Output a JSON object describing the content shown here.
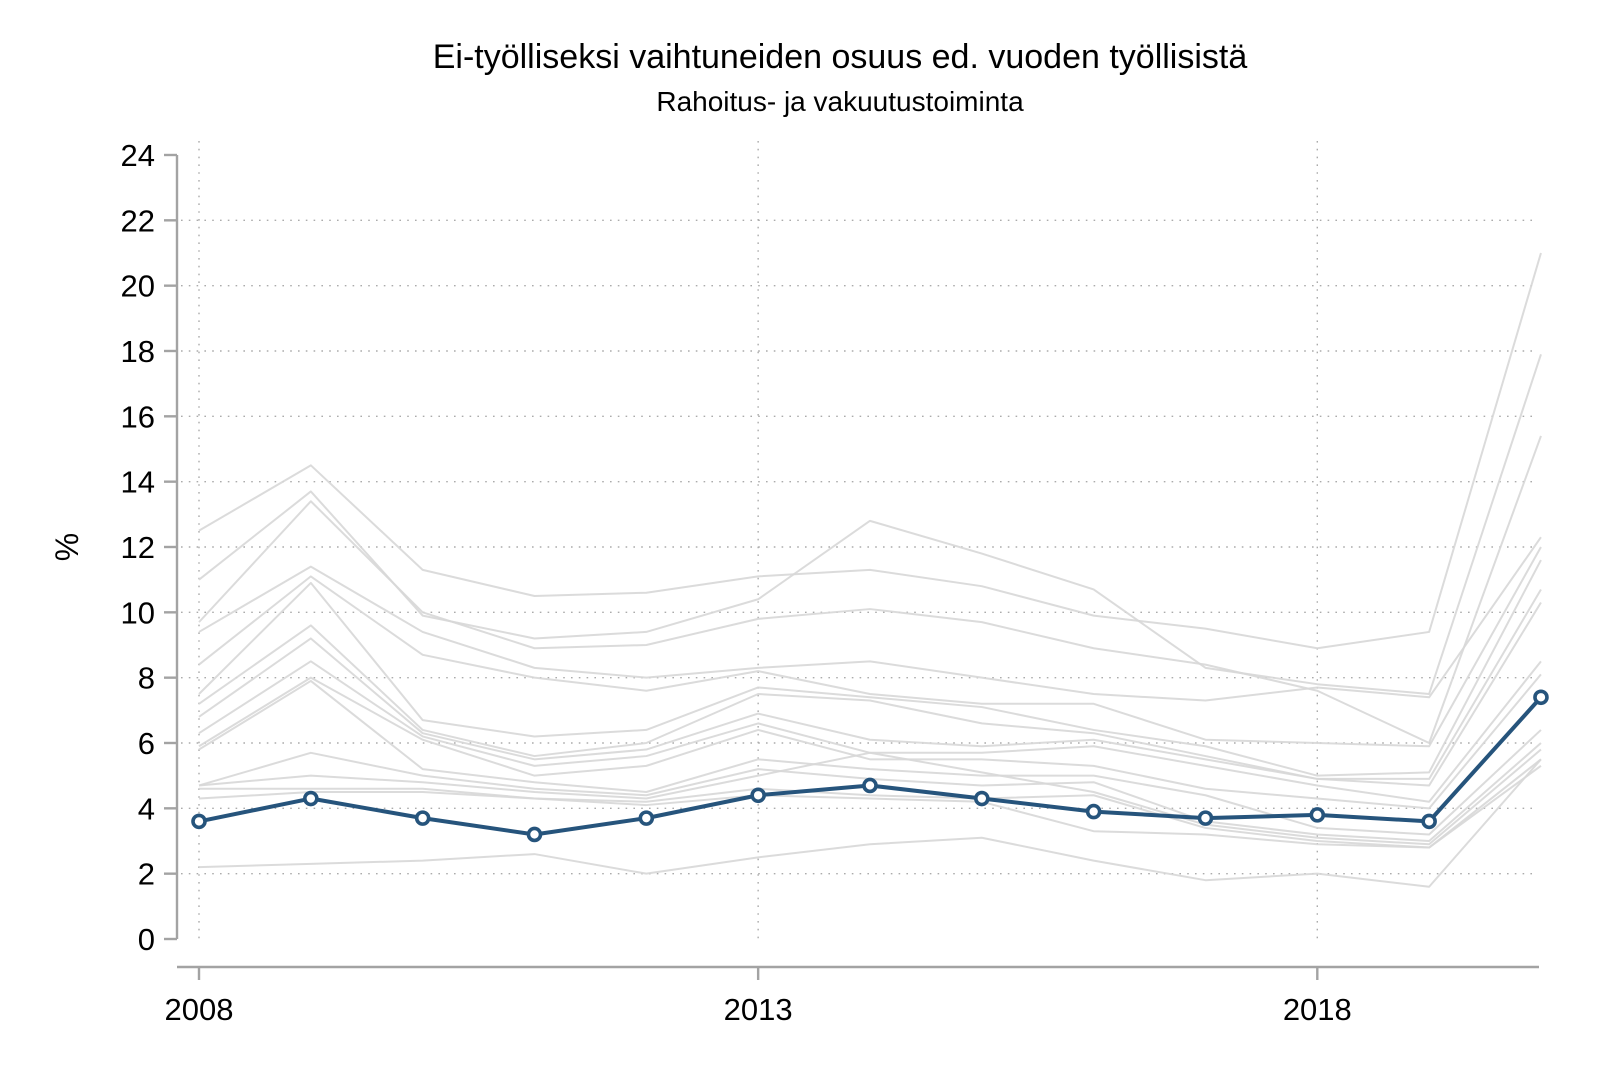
{
  "figure": {
    "title": "Ei-työlliseksi vaihtuneiden osuus ed. vuoden työllisistä",
    "subtitle": "Rahoitus- ja vakuutustoiminta"
  },
  "colors": {
    "highlight_line": "#26547C",
    "background_line": "#d7d7d7",
    "axis_line": "#a3a3a3",
    "grid_dots": "#ababab",
    "text": "#000000",
    "marker_fill": "#ffffff"
  },
  "chart_data": {
    "type": "line",
    "title": "Ei-työlliseksi vaihtuneiden osuus ed. vuoden työllisistä",
    "subtitle": "Rahoitus- ja vakuutustoiminta",
    "xlabel": "",
    "ylabel": "%",
    "ylim": [
      0,
      24
    ],
    "yticks": [
      0,
      2,
      4,
      6,
      8,
      10,
      12,
      14,
      16,
      18,
      20,
      22,
      24
    ],
    "xlim": [
      2008,
      2020
    ],
    "xticks": [
      2008,
      2013,
      2018
    ],
    "grid": "dotted horizontal lines at y=2..22, dotted vertical lines at labeled years",
    "legend": "none",
    "x": [
      2008,
      2009,
      2010,
      2011,
      2012,
      2013,
      2014,
      2015,
      2016,
      2017,
      2018,
      2019,
      2020
    ],
    "highlight_series": {
      "name": "Rahoitus- ja vakuutustoiminta",
      "marker": "open-circle",
      "values": [
        3.6,
        4.3,
        3.7,
        3.2,
        3.7,
        4.4,
        4.7,
        4.3,
        3.9,
        3.7,
        3.8,
        3.6,
        7.4
      ]
    },
    "background_series": [
      {
        "values": [
          12.5,
          14.5,
          11.3,
          10.5,
          10.6,
          11.1,
          11.3,
          10.8,
          9.9,
          9.5,
          8.9,
          9.4,
          21.0
        ]
      },
      {
        "values": [
          11.0,
          13.7,
          9.9,
          9.2,
          9.4,
          10.4,
          12.8,
          11.8,
          10.7,
          8.3,
          7.8,
          7.5,
          17.9
        ]
      },
      {
        "values": [
          9.7,
          13.4,
          10.0,
          8.9,
          9.0,
          9.8,
          10.1,
          9.7,
          8.9,
          8.4,
          7.6,
          6.0,
          15.4
        ]
      },
      {
        "values": [
          9.4,
          11.4,
          9.4,
          8.3,
          8.0,
          8.3,
          8.5,
          8.0,
          7.5,
          7.3,
          7.7,
          7.4,
          12.3
        ]
      },
      {
        "values": [
          8.4,
          11.1,
          8.7,
          8.0,
          7.6,
          8.2,
          7.5,
          7.2,
          7.2,
          6.1,
          6.0,
          5.9,
          12.0
        ]
      },
      {
        "values": [
          7.5,
          10.9,
          6.7,
          6.2,
          6.4,
          7.7,
          7.4,
          7.1,
          6.4,
          5.9,
          5.0,
          5.1,
          11.6
        ]
      },
      {
        "values": [
          7.2,
          9.6,
          6.4,
          5.6,
          6.0,
          7.5,
          7.3,
          6.6,
          6.3,
          5.6,
          4.9,
          4.9,
          10.7
        ]
      },
      {
        "values": [
          6.8,
          9.2,
          6.3,
          5.5,
          5.8,
          6.9,
          6.1,
          5.9,
          6.1,
          5.5,
          4.9,
          4.7,
          10.3
        ]
      },
      {
        "values": [
          6.3,
          8.5,
          6.2,
          5.3,
          5.6,
          6.6,
          5.7,
          5.7,
          5.9,
          5.3,
          4.7,
          4.2,
          8.5
        ]
      },
      {
        "values": [
          5.9,
          8.0,
          6.1,
          5.0,
          5.3,
          6.4,
          5.5,
          5.5,
          5.3,
          4.6,
          4.3,
          4.0,
          8.1
        ]
      },
      {
        "values": [
          5.8,
          7.9,
          5.2,
          4.8,
          4.5,
          5.5,
          5.2,
          5.0,
          5.0,
          4.4,
          3.4,
          3.2,
          6.4
        ]
      },
      {
        "values": [
          4.7,
          5.7,
          5.0,
          4.6,
          4.4,
          5.2,
          4.9,
          4.7,
          4.8,
          3.6,
          3.2,
          3.0,
          6.0
        ]
      },
      {
        "values": [
          4.7,
          5.0,
          4.8,
          4.5,
          4.3,
          5.0,
          5.7,
          5.1,
          4.5,
          3.5,
          3.1,
          2.9,
          5.8
        ]
      },
      {
        "values": [
          4.6,
          4.6,
          4.6,
          4.3,
          4.2,
          4.6,
          4.4,
          4.3,
          4.4,
          3.4,
          3.0,
          2.8,
          5.5
        ]
      },
      {
        "values": [
          4.3,
          4.5,
          4.5,
          4.3,
          4.1,
          4.4,
          4.3,
          4.2,
          3.3,
          3.2,
          2.9,
          2.8,
          5.3
        ]
      },
      {
        "values": [
          2.2,
          2.3,
          2.4,
          2.6,
          2.0,
          2.5,
          2.9,
          3.1,
          2.4,
          1.8,
          2.0,
          1.6,
          5.5
        ]
      }
    ]
  }
}
